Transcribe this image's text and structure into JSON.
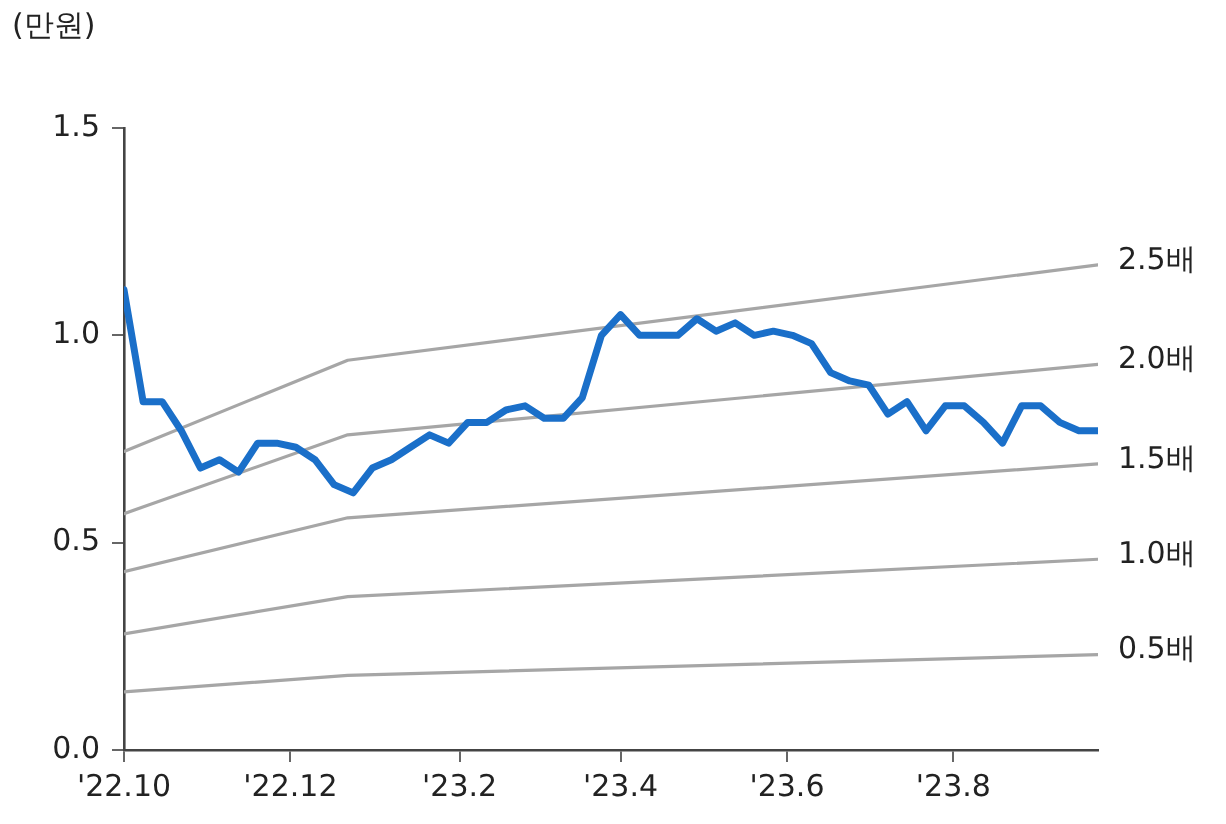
{
  "chart_data": {
    "type": "line",
    "ylabel": "(만원)",
    "xlim": [
      "2022-10-01",
      "2023-09-23"
    ],
    "xticks": [
      {
        "value": "2022-10",
        "label": "'22.10"
      },
      {
        "value": "2022-12",
        "label": "'22.12"
      },
      {
        "value": "2023-02",
        "label": "'23.2"
      },
      {
        "value": "2023-04",
        "label": "'23.4"
      },
      {
        "value": "2023-06",
        "label": "'23.6"
      },
      {
        "value": "2023-08",
        "label": "'23.8"
      }
    ],
    "ylim": [
      0,
      1.5
    ],
    "yticks": [
      {
        "value": 0,
        "label": "0.0"
      },
      {
        "value": 0.5,
        "label": "0.5"
      },
      {
        "value": 1,
        "label": "1.0"
      },
      {
        "value": 1.5,
        "label": "1.5"
      }
    ],
    "grid": false,
    "legend": false,
    "marker": "none",
    "line_style": "solid",
    "x": [
      "2022-10-01",
      "2022-10-08",
      "2022-10-15",
      "2022-10-22",
      "2022-10-29",
      "2022-11-05",
      "2022-11-12",
      "2022-11-19",
      "2022-11-26",
      "2022-12-03",
      "2022-12-10",
      "2022-12-17",
      "2022-12-24",
      "2022-12-31",
      "2023-01-07",
      "2023-01-14",
      "2023-01-21",
      "2023-01-28",
      "2023-02-04",
      "2023-02-11",
      "2023-02-18",
      "2023-02-25",
      "2023-03-04",
      "2023-03-11",
      "2023-03-18",
      "2023-03-25",
      "2023-04-01",
      "2023-04-08",
      "2023-04-15",
      "2023-04-22",
      "2023-04-29",
      "2023-05-06",
      "2023-05-13",
      "2023-05-20",
      "2023-05-27",
      "2023-06-03",
      "2023-06-10",
      "2023-06-17",
      "2023-06-24",
      "2023-07-01",
      "2023-07-08",
      "2023-07-15",
      "2023-07-22",
      "2023-07-29",
      "2023-08-05",
      "2023-08-12",
      "2023-08-19",
      "2023-08-26",
      "2023-09-02",
      "2023-09-09",
      "2023-09-16",
      "2023-09-23"
    ],
    "series": [
      {
        "color": "#1a6fc9",
        "values": [
          1.11,
          0.84,
          0.84,
          0.77,
          0.68,
          0.7,
          0.67,
          0.74,
          0.74,
          0.73,
          0.7,
          0.64,
          0.62,
          0.68,
          0.7,
          0.73,
          0.76,
          0.74,
          0.79,
          0.79,
          0.82,
          0.83,
          0.8,
          0.8,
          0.85,
          1.0,
          1.05,
          1.0,
          1.0,
          1.0,
          1.04,
          1.01,
          1.03,
          1.0,
          1.01,
          1.0,
          0.98,
          0.91,
          0.89,
          0.88,
          0.81,
          0.84,
          0.77,
          0.83,
          0.83,
          0.79,
          0.74,
          0.83,
          0.83,
          0.79,
          0.77,
          0.77
        ]
      },
      {
        "name": "2.5배",
        "color": "#a6a6a6",
        "x": [
          "2022-10-01",
          "2022-12-22",
          "2023-09-23"
        ],
        "values": [
          0.72,
          0.94,
          1.17
        ]
      },
      {
        "name": "2.0배",
        "color": "#a6a6a6",
        "x": [
          "2022-10-01",
          "2022-12-22",
          "2023-09-23"
        ],
        "values": [
          0.57,
          0.76,
          0.93
        ]
      },
      {
        "name": "1.5배",
        "color": "#a6a6a6",
        "x": [
          "2022-10-01",
          "2022-12-22",
          "2023-09-23"
        ],
        "values": [
          0.43,
          0.56,
          0.69
        ]
      },
      {
        "name": "1.0배",
        "color": "#a6a6a6",
        "x": [
          "2022-10-01",
          "2022-12-22",
          "2023-09-23"
        ],
        "values": [
          0.28,
          0.37,
          0.46
        ]
      },
      {
        "name": "0.5배",
        "color": "#a6a6a6",
        "x": [
          "2022-10-01",
          "2022-12-22",
          "2023-09-23"
        ],
        "values": [
          0.14,
          0.18,
          0.23
        ]
      }
    ]
  }
}
